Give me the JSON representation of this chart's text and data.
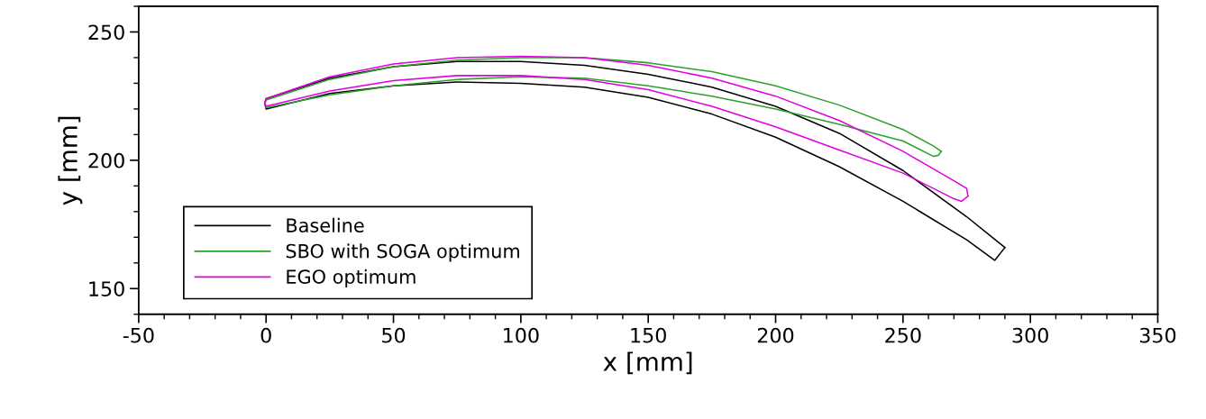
{
  "chart_data": {
    "type": "line",
    "xlabel": "x [mm]",
    "ylabel": "y [mm]",
    "xlim": [
      -50,
      350
    ],
    "xticks": [
      -50,
      0,
      50,
      100,
      150,
      200,
      250,
      300,
      350
    ],
    "ylim": [
      140,
      260
    ],
    "yticks": [
      150,
      200,
      250
    ],
    "grid": false,
    "legend": "bottom left",
    "marker": "none",
    "line_style": "solid",
    "series": [
      {
        "name": "Baseline",
        "color": "#000000",
        "x": [
          -0.5,
          0,
          25,
          50,
          75,
          100,
          125,
          150,
          175,
          200,
          225,
          250,
          275,
          290
        ],
        "values": [
          222,
          224,
          232,
          236.5,
          238.5,
          238.5,
          237,
          233.5,
          228.5,
          221,
          210.5,
          196,
          178,
          166
        ]
      },
      {
        "color": "#000000",
        "x": [
          -0.5,
          0,
          25,
          50,
          75,
          100,
          125,
          150,
          175,
          200,
          225,
          250,
          275,
          286,
          290
        ],
        "values": [
          222,
          220,
          226,
          229,
          230.5,
          230,
          228.5,
          224.5,
          218,
          209,
          197.5,
          184,
          169,
          161,
          166
        ]
      },
      {
        "name": "SBO with SOGA optimum",
        "color": "#2ca02c",
        "x": [
          -0.5,
          0,
          25,
          50,
          75,
          100,
          125,
          150,
          175,
          200,
          225,
          250,
          262,
          265
        ],
        "values": [
          222,
          223.5,
          231.5,
          236.5,
          239,
          240,
          240,
          238,
          234.5,
          229,
          221.5,
          212,
          205.5,
          203.5
        ]
      },
      {
        "color": "#2ca02c",
        "x": [
          -0.5,
          0,
          25,
          50,
          75,
          100,
          125,
          150,
          175,
          200,
          225,
          250,
          262,
          264,
          265
        ],
        "values": [
          222,
          220.5,
          225.5,
          229,
          231.5,
          232.5,
          232,
          229,
          225,
          220,
          214,
          207.5,
          201.5,
          202,
          203.5
        ]
      },
      {
        "name": "EGO optimum",
        "color": "#e000e0",
        "x": [
          -0.5,
          0,
          25,
          50,
          75,
          100,
          125,
          150,
          175,
          200,
          225,
          250,
          270,
          275,
          275.5
        ],
        "values": [
          222.5,
          224,
          232.5,
          237.5,
          240,
          240.5,
          240,
          237,
          232,
          225,
          215.5,
          203.5,
          192,
          189,
          186
        ]
      },
      {
        "color": "#e000e0",
        "x": [
          -0.5,
          0,
          25,
          50,
          75,
          100,
          125,
          150,
          175,
          200,
          225,
          250,
          270,
          273,
          275.5
        ],
        "values": [
          222.5,
          221,
          227,
          231,
          233,
          233,
          231.5,
          227.5,
          221,
          213,
          204,
          195,
          185,
          184,
          186
        ]
      }
    ]
  }
}
